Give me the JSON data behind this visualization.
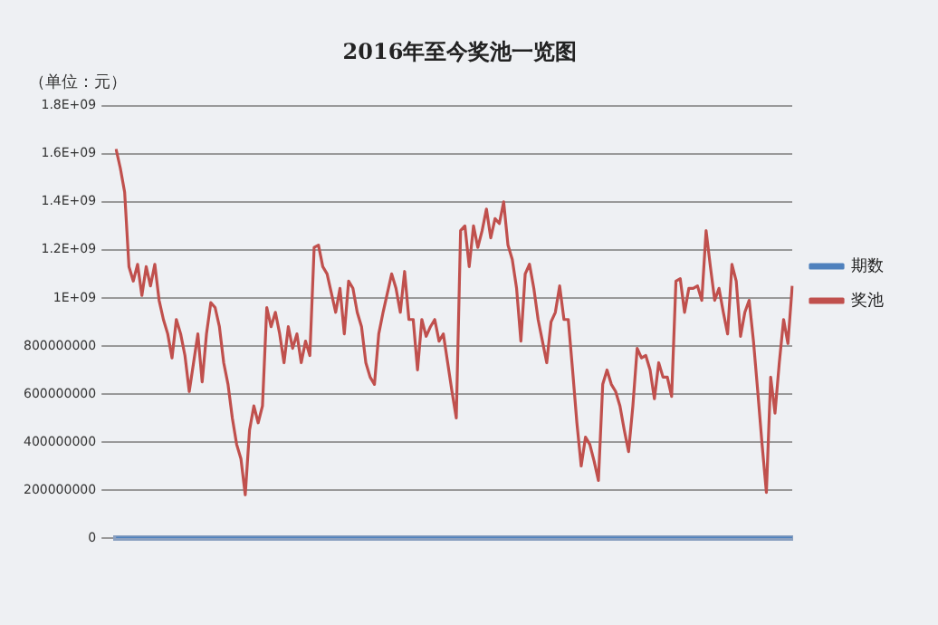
{
  "chart_data": {
    "type": "line",
    "title": "2016年至今奖池一览图",
    "ylabel": "（单位：元）",
    "categories": [
      null,
      null,
      null,
      null,
      null,
      null,
      null,
      null,
      null,
      null,
      null,
      null,
      null,
      null,
      null,
      null,
      null,
      null,
      null,
      null,
      null,
      null,
      null,
      null,
      null,
      null,
      null,
      null,
      null,
      null,
      null,
      null,
      null,
      null,
      null,
      null,
      null,
      null,
      null,
      null,
      null,
      null,
      null,
      null,
      null,
      null,
      null,
      null,
      null,
      null,
      null,
      null,
      null,
      null,
      null,
      null,
      null,
      null,
      null,
      null,
      null,
      null,
      null,
      null,
      null,
      null,
      null,
      null,
      null,
      null,
      null,
      null,
      null,
      null,
      null,
      null,
      null,
      null,
      null,
      null,
      null,
      null,
      null,
      null,
      null,
      null,
      null,
      null,
      null,
      null,
      null,
      null,
      null,
      null,
      null,
      null,
      null,
      null,
      null,
      null,
      null,
      null,
      null,
      null,
      null,
      null,
      null,
      null,
      null,
      null,
      null,
      null,
      null,
      null,
      null,
      null,
      null,
      null,
      null,
      null,
      null,
      null,
      null,
      null,
      null,
      null,
      null,
      null,
      null,
      null,
      null,
      null,
      null,
      null,
      null,
      null,
      null,
      null,
      null,
      null,
      null,
      null,
      null,
      null,
      null,
      null,
      null,
      null,
      null,
      null,
      null,
      null,
      null,
      null,
      null,
      null,
      null,
      null
    ],
    "series": [
      {
        "name": "期数",
        "color": "#4f81bd",
        "values": [
          0,
          0,
          0,
          0,
          0,
          0,
          0,
          0,
          0,
          0,
          0,
          0,
          0,
          0,
          0,
          0,
          0,
          0,
          0,
          0,
          0,
          0,
          0,
          0,
          0,
          0,
          0,
          0,
          0,
          0,
          0,
          0,
          0,
          0,
          0,
          0,
          0,
          0,
          0,
          0,
          0,
          0,
          0,
          0,
          0,
          0,
          0,
          0,
          0,
          0,
          0,
          0,
          0,
          0,
          0,
          0,
          0,
          0,
          0,
          0,
          0,
          0,
          0,
          0,
          0,
          0,
          0,
          0,
          0,
          0,
          0,
          0,
          0,
          0,
          0,
          0,
          0,
          0,
          0,
          0,
          0,
          0,
          0,
          0,
          0,
          0,
          0,
          0,
          0,
          0,
          0,
          0,
          0,
          0,
          0,
          0,
          0,
          0,
          0,
          0,
          0,
          0,
          0,
          0,
          0,
          0,
          0,
          0,
          0,
          0,
          0,
          0,
          0,
          0,
          0,
          0,
          0,
          0,
          0,
          0,
          0,
          0,
          0,
          0,
          0,
          0,
          0,
          0,
          0,
          0,
          0,
          0,
          0,
          0,
          0,
          0,
          0,
          0,
          0,
          0,
          0,
          0,
          0,
          0,
          0,
          0,
          0,
          0,
          0,
          0,
          0,
          0,
          0,
          0,
          0,
          0,
          0,
          0
        ]
      },
      {
        "name": "奖池",
        "color": "#c0504d",
        "values": [
          1620000000,
          1540000000,
          1440000000,
          1130000000,
          1070000000,
          1140000000,
          1010000000,
          1130000000,
          1050000000,
          1140000000,
          990000000,
          910000000,
          850000000,
          750000000,
          910000000,
          850000000,
          760000000,
          610000000,
          730000000,
          850000000,
          650000000,
          850000000,
          980000000,
          960000000,
          880000000,
          730000000,
          640000000,
          500000000,
          390000000,
          330000000,
          180000000,
          450000000,
          550000000,
          480000000,
          550000000,
          960000000,
          880000000,
          940000000,
          850000000,
          730000000,
          880000000,
          790000000,
          850000000,
          730000000,
          820000000,
          760000000,
          1210000000,
          1220000000,
          1130000000,
          1100000000,
          1020000000,
          940000000,
          1040000000,
          850000000,
          1070000000,
          1040000000,
          940000000,
          880000000,
          730000000,
          670000000,
          640000000,
          850000000,
          940000000,
          1020000000,
          1100000000,
          1040000000,
          940000000,
          1110000000,
          910000000,
          910000000,
          700000000,
          910000000,
          840000000,
          880000000,
          910000000,
          820000000,
          850000000,
          730000000,
          610000000,
          500000000,
          1280000000,
          1300000000,
          1130000000,
          1300000000,
          1210000000,
          1280000000,
          1370000000,
          1250000000,
          1330000000,
          1310000000,
          1400000000,
          1220000000,
          1160000000,
          1040000000,
          820000000,
          1100000000,
          1140000000,
          1040000000,
          910000000,
          820000000,
          730000000,
          900000000,
          940000000,
          1050000000,
          910000000,
          910000000,
          700000000,
          480000000,
          300000000,
          420000000,
          390000000,
          320000000,
          240000000,
          640000000,
          700000000,
          640000000,
          610000000,
          550000000,
          450000000,
          360000000,
          550000000,
          790000000,
          750000000,
          760000000,
          700000000,
          580000000,
          730000000,
          670000000,
          670000000,
          590000000,
          1070000000,
          1080000000,
          940000000,
          1040000000,
          1040000000,
          1050000000,
          990000000,
          1280000000,
          1130000000,
          990000000,
          1040000000,
          940000000,
          850000000,
          1140000000,
          1070000000,
          840000000,
          940000000,
          990000000,
          820000000,
          610000000,
          390000000,
          190000000,
          670000000,
          520000000,
          730000000,
          910000000,
          810000000,
          1050000000
        ]
      }
    ],
    "ylim": [
      0,
      1800000000
    ],
    "yticks": [
      0,
      200000000,
      400000000,
      600000000,
      800000000,
      {
        "value": 1000000000,
        "label": "1E+09"
      },
      {
        "value": 1200000000,
        "label": "1.2E+09"
      },
      {
        "value": 1400000000,
        "label": "1.4E+09"
      },
      {
        "value": 1600000000,
        "label": "1.6E+09"
      },
      {
        "value": 1800000000,
        "label": "1.8E+09"
      }
    ],
    "grid": "y",
    "legend": "right",
    "marker": "none",
    "line_style": "solid",
    "tick_labels": "y"
  }
}
